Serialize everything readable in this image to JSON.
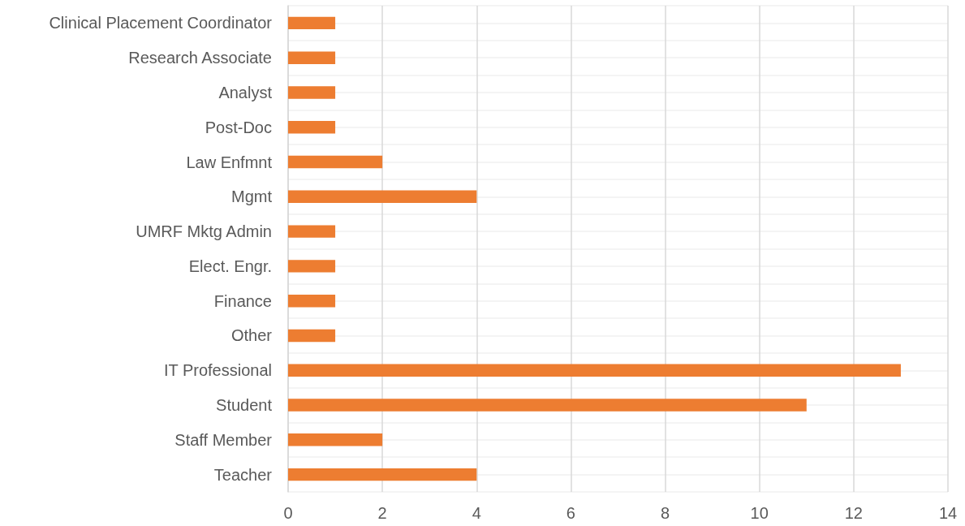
{
  "chart_data": {
    "type": "bar",
    "orientation": "horizontal",
    "categories": [
      "Clinical Placement Coordinator",
      "Research Associate",
      "Analyst",
      "Post-Doc",
      "Law Enfmnt",
      "Mgmt",
      "UMRF Mktg Admin",
      "Elect. Engr.",
      "Finance",
      "Other",
      "IT Professional",
      "Student",
      "Staff Member",
      "Teacher"
    ],
    "values": [
      1,
      1,
      1,
      1,
      2,
      4,
      1,
      1,
      1,
      1,
      13,
      11,
      2,
      4
    ],
    "color": "#ed7d31",
    "xlim": [
      0,
      14
    ],
    "xticks": [
      0,
      2,
      4,
      6,
      8,
      10,
      12,
      14
    ],
    "grid": true
  }
}
